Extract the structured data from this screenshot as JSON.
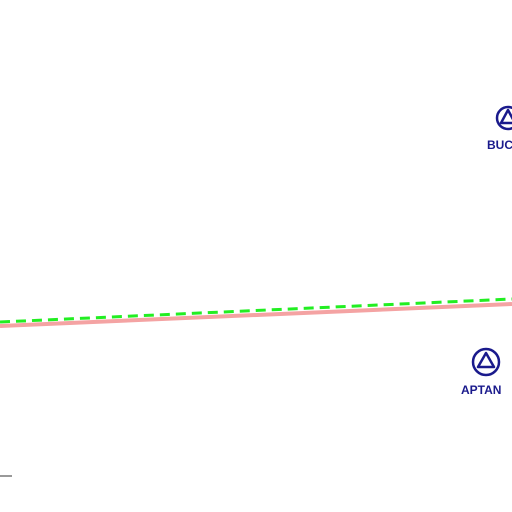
{
  "waypoints": [
    {
      "label": "BUC"
    },
    {
      "label": "APTAN"
    }
  ]
}
